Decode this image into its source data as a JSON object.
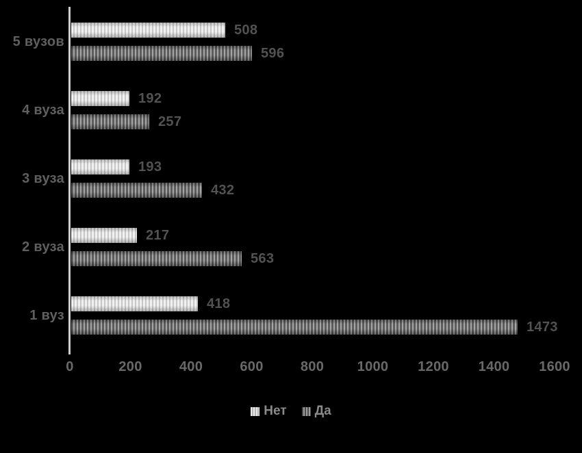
{
  "background_color": "#000000",
  "chart_data": {
    "type": "bar",
    "orientation": "horizontal",
    "title": "",
    "xlabel": "",
    "ylabel": "",
    "categories": [
      "5 вузов",
      "4 вуза",
      "3 вуза",
      "2 вуза",
      "1 вуз"
    ],
    "series": [
      {
        "name": "Нет",
        "values": [
          508,
          192,
          193,
          217,
          418
        ],
        "pattern": "vertical-stripes",
        "stripe_light": "#eeeeee",
        "stripe_dark": "#c1c1c1"
      },
      {
        "name": "Да",
        "values": [
          596,
          257,
          432,
          563,
          1473
        ],
        "pattern": "vertical-stripes",
        "stripe_light": "#9c9c9c",
        "stripe_dark": "#4b4b4b"
      }
    ],
    "xlim": [
      0,
      1600
    ],
    "xticks": [
      0,
      200,
      400,
      600,
      800,
      1000,
      1200,
      1400,
      1600
    ],
    "grid": false,
    "data_labels": true,
    "legend_position": "bottom",
    "axis_line_color": "#cdcdcd",
    "category_label_color": "#5f5f5f",
    "value_label_color": "#525252",
    "tick_label_color": "#696969",
    "legend_text_color": "#8a8a8a"
  }
}
